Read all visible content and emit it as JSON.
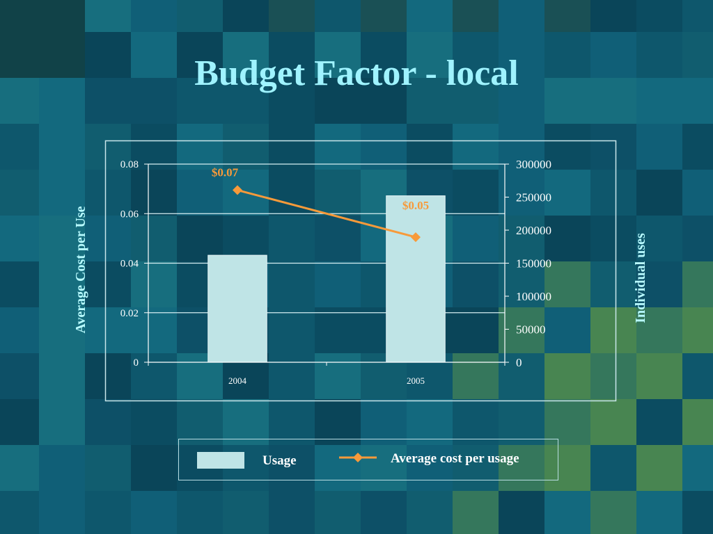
{
  "slide": {
    "title": "Budget Factor - local"
  },
  "colors": {
    "background": "#0f5a72",
    "title": "#9ff3ff",
    "bar_fill": "#bfe4e6",
    "line": "#f79a3a",
    "axis_title": "#b8fbff",
    "text": "#ffffff"
  },
  "chart_data": {
    "type": "bar",
    "categories": [
      "2004",
      "2005"
    ],
    "series": [
      {
        "name": "Usage",
        "type": "bar",
        "axis": "right",
        "values": [
          162000,
          252000
        ]
      },
      {
        "name": "Average cost per usage",
        "type": "line",
        "axis": "left",
        "values": [
          0.0695,
          0.0505
        ],
        "data_labels": [
          "$0.07",
          "$0.05"
        ]
      }
    ],
    "ylabel": "Average Cost per Use",
    "y2label": "Individual uses",
    "ylim": [
      0,
      0.08
    ],
    "y2lim": [
      0,
      300000
    ],
    "yticks": [
      "0",
      "0.02",
      "0.04",
      "0.06",
      "0.08"
    ],
    "y2ticks": [
      "0",
      "50000",
      "100000",
      "150000",
      "200000",
      "250000",
      "300000"
    ],
    "grid": true,
    "legend": "bottom"
  }
}
